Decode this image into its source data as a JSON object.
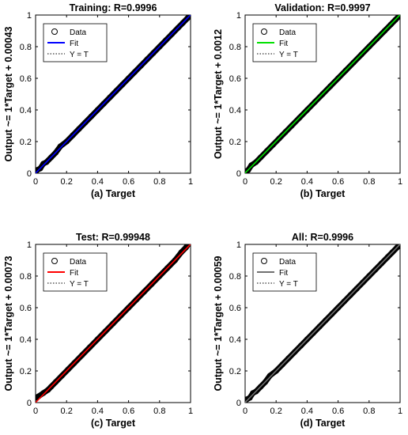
{
  "chart_data": [
    {
      "type": "scatter",
      "panel": "(a)",
      "title": "Training: R=0.9996",
      "xlabel": "Target",
      "ylabel": "Output ~= 1*Target + 0.00043",
      "xlim": [
        0,
        1
      ],
      "ylim": [
        0,
        1
      ],
      "xticks": [
        "0",
        "0.2",
        "0.4",
        "0.6",
        "0.8",
        "1"
      ],
      "yticks": [
        "0",
        "0.2",
        "0.4",
        "0.6",
        "0.8",
        "1"
      ],
      "fit": {
        "slope": 1,
        "intercept": 0.00043,
        "color": "#0000ff"
      },
      "series": [
        {
          "name": "Data",
          "x": [
            0.0,
            0.01,
            0.03,
            0.05,
            0.07,
            0.1,
            0.13,
            0.16,
            0.2,
            0.24,
            0.28,
            0.32,
            0.36,
            0.4,
            0.44,
            0.48,
            0.52,
            0.56,
            0.6,
            0.64,
            0.68,
            0.72,
            0.76,
            0.8,
            0.84,
            0.88,
            0.92,
            0.95,
            0.98,
            1.0
          ],
          "y": [
            0.01,
            0.02,
            0.03,
            0.06,
            0.07,
            0.1,
            0.13,
            0.17,
            0.2,
            0.24,
            0.28,
            0.32,
            0.36,
            0.4,
            0.44,
            0.48,
            0.52,
            0.56,
            0.6,
            0.64,
            0.68,
            0.72,
            0.76,
            0.8,
            0.84,
            0.88,
            0.92,
            0.95,
            0.98,
            1.0
          ]
        },
        {
          "name": "Fit"
        },
        {
          "name": "Y = T"
        }
      ]
    },
    {
      "type": "scatter",
      "panel": "(b)",
      "title": "Validation: R=0.9997",
      "xlabel": "Target",
      "ylabel": "Output ~= 1*Target + 0.0012",
      "xlim": [
        0,
        1
      ],
      "ylim": [
        0,
        1
      ],
      "xticks": [
        "0",
        "0.2",
        "0.4",
        "0.6",
        "0.8",
        "1"
      ],
      "yticks": [
        "0",
        "0.2",
        "0.4",
        "0.6",
        "0.8",
        "1"
      ],
      "fit": {
        "slope": 1,
        "intercept": 0.0012,
        "color": "#00e000"
      },
      "series": [
        {
          "name": "Data",
          "x": [
            0.0,
            0.02,
            0.04,
            0.07,
            0.1,
            0.14,
            0.18,
            0.22,
            0.26,
            0.3,
            0.35,
            0.4,
            0.45,
            0.5,
            0.55,
            0.6,
            0.65,
            0.7,
            0.75,
            0.8,
            0.85,
            0.9,
            0.94,
            0.97,
            1.0
          ],
          "y": [
            0.01,
            0.02,
            0.05,
            0.07,
            0.1,
            0.14,
            0.18,
            0.22,
            0.26,
            0.3,
            0.35,
            0.4,
            0.45,
            0.5,
            0.55,
            0.6,
            0.65,
            0.7,
            0.75,
            0.8,
            0.85,
            0.9,
            0.94,
            0.97,
            1.0
          ]
        },
        {
          "name": "Fit"
        },
        {
          "name": "Y = T"
        }
      ]
    },
    {
      "type": "scatter",
      "panel": "(c)",
      "title": "Test: R=0.99948",
      "xlabel": "Target",
      "ylabel": "Output ~= 1*Target + 0.00073",
      "xlim": [
        0,
        1
      ],
      "ylim": [
        0,
        1
      ],
      "xticks": [
        "0",
        "0.2",
        "0.4",
        "0.6",
        "0.8",
        "1"
      ],
      "yticks": [
        "0",
        "0.2",
        "0.4",
        "0.6",
        "0.8",
        "1"
      ],
      "fit": {
        "slope": 1,
        "intercept": 0.00073,
        "color": "#ff0000"
      },
      "series": [
        {
          "name": "Data",
          "x": [
            0.0,
            0.02,
            0.05,
            0.08,
            0.1,
            0.13,
            0.17,
            0.21,
            0.25,
            0.3,
            0.35,
            0.4,
            0.45,
            0.5,
            0.55,
            0.6,
            0.65,
            0.7,
            0.75,
            0.8,
            0.85,
            0.9,
            0.94,
            0.97,
            1.0
          ],
          "y": [
            0.03,
            0.04,
            0.06,
            0.08,
            0.1,
            0.13,
            0.17,
            0.21,
            0.25,
            0.3,
            0.35,
            0.4,
            0.45,
            0.5,
            0.55,
            0.6,
            0.65,
            0.7,
            0.75,
            0.8,
            0.85,
            0.9,
            0.95,
            0.98,
            1.02
          ]
        },
        {
          "name": "Fit"
        },
        {
          "name": "Y = T"
        }
      ]
    },
    {
      "type": "scatter",
      "panel": "(d)",
      "title": "All: R=0.9996",
      "xlabel": "Target",
      "ylabel": "Output ~= 1*Target + 0.00059",
      "xlim": [
        0,
        1
      ],
      "ylim": [
        0,
        1
      ],
      "xticks": [
        "0",
        "0.2",
        "0.4",
        "0.6",
        "0.8",
        "1"
      ],
      "yticks": [
        "0",
        "0.2",
        "0.4",
        "0.6",
        "0.8",
        "1"
      ],
      "fit": {
        "slope": 1,
        "intercept": 0.00059,
        "color": "#707070"
      },
      "series": [
        {
          "name": "Data",
          "x": [
            0.0,
            0.01,
            0.03,
            0.05,
            0.07,
            0.1,
            0.13,
            0.16,
            0.2,
            0.24,
            0.28,
            0.32,
            0.36,
            0.4,
            0.44,
            0.48,
            0.52,
            0.56,
            0.6,
            0.64,
            0.68,
            0.72,
            0.76,
            0.8,
            0.84,
            0.88,
            0.92,
            0.95,
            0.98,
            1.0
          ],
          "y": [
            0.01,
            0.02,
            0.03,
            0.06,
            0.07,
            0.1,
            0.13,
            0.17,
            0.2,
            0.24,
            0.28,
            0.32,
            0.36,
            0.4,
            0.44,
            0.48,
            0.52,
            0.56,
            0.6,
            0.64,
            0.68,
            0.72,
            0.76,
            0.8,
            0.84,
            0.88,
            0.92,
            0.95,
            0.98,
            1.0
          ]
        },
        {
          "name": "Fit"
        },
        {
          "name": "Y = T"
        }
      ]
    }
  ]
}
